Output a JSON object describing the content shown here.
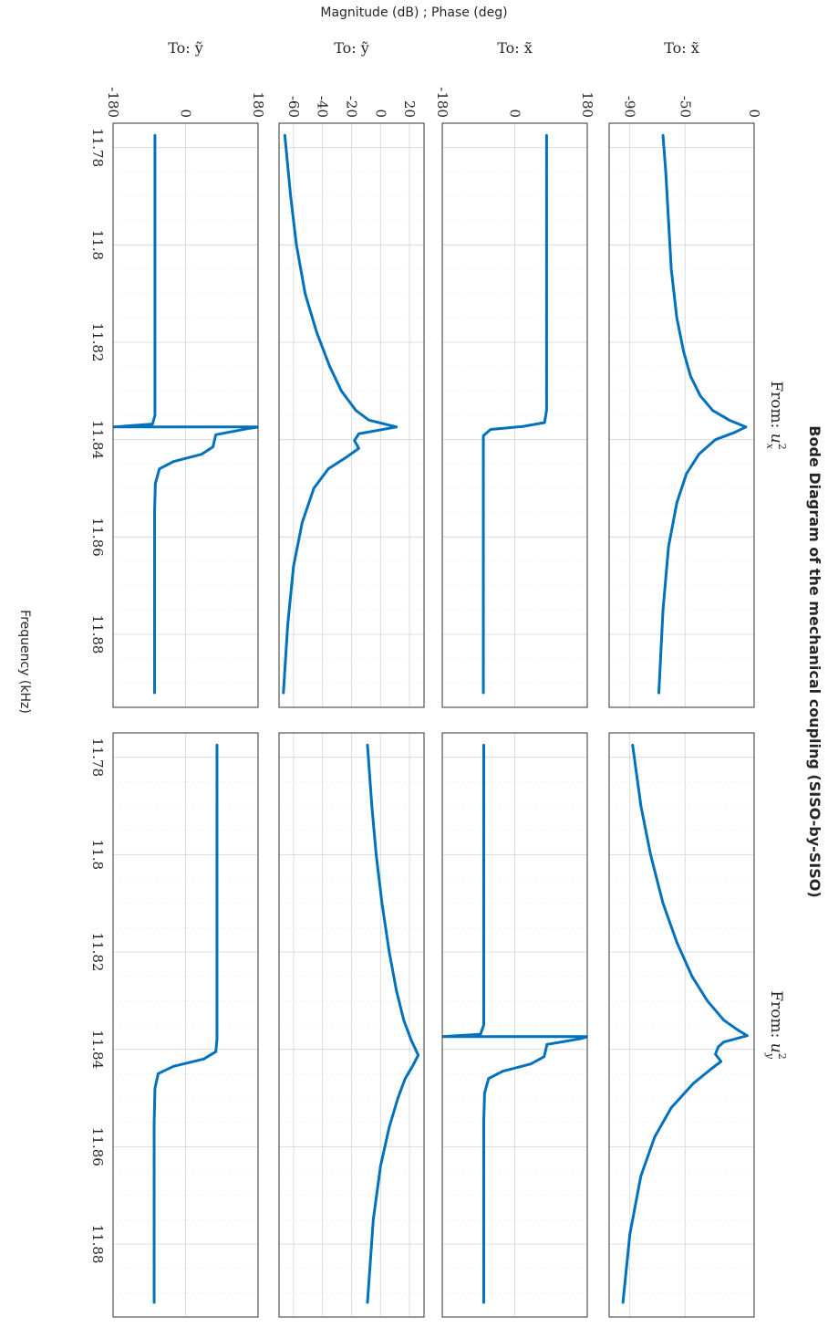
{
  "chart_data": {
    "type": "line",
    "title": "Bode Diagram of the mechanical coupling (SISO-by-SISO)",
    "xlabel": "Frequency  (kHz)",
    "ylabel": "Magnitude (dB) ; Phase (deg)",
    "line_color": "#0072BD",
    "xlim": [
      11.775,
      11.895
    ],
    "x_ticks": [
      11.78,
      11.8,
      11.82,
      11.84,
      11.86,
      11.88
    ],
    "x_tick_labels": [
      "11.78",
      "11.8",
      "11.82",
      "11.84",
      "11.86",
      "11.88"
    ],
    "grid": true,
    "columns": [
      {
        "key": "c1",
        "label_prefix": "From:",
        "label_sym": "u",
        "label_sub": "x",
        "label_sup": "2"
      },
      {
        "key": "c2",
        "label_prefix": "From:",
        "label_sym": "u",
        "label_sub": "y",
        "label_sup": "2"
      }
    ],
    "rows": [
      {
        "key": "r1",
        "kind": "magnitude",
        "label_prefix": "To:",
        "label_sym": "x̃",
        "ylim": [
          -105,
          0
        ],
        "yticks": [
          0,
          -50,
          -90
        ],
        "ytick_labels": [
          "0",
          "-50",
          "-90"
        ]
      },
      {
        "key": "r2",
        "kind": "phase",
        "label_prefix": "To:",
        "label_sym": "x̃",
        "ylim": [
          -180,
          180
        ],
        "yticks": [
          180,
          0,
          -180
        ],
        "ytick_labels": [
          "180",
          "0",
          "-180"
        ]
      },
      {
        "key": "r3",
        "kind": "magnitude",
        "label_prefix": "To:",
        "label_sym": "ỹ",
        "ylim": [
          -70,
          30
        ],
        "yticks": [
          20,
          0,
          -20,
          -40,
          -60
        ],
        "ytick_labels": [
          "20",
          "0",
          "-20",
          "-40",
          "-60"
        ]
      },
      {
        "key": "r4",
        "kind": "phase",
        "label_prefix": "To:",
        "label_sym": "ỹ",
        "ylim": [
          -180,
          180
        ],
        "yticks": [
          180,
          0,
          -180
        ],
        "ytick_labels": [
          "180",
          "0",
          "-180"
        ]
      }
    ],
    "series": [
      {
        "row": 0,
        "col": 0,
        "points": [
          [
            11.7775,
            -66
          ],
          [
            11.785,
            -64
          ],
          [
            11.795,
            -62
          ],
          [
            11.805,
            -60
          ],
          [
            11.815,
            -56
          ],
          [
            11.822,
            -51
          ],
          [
            11.827,
            -46
          ],
          [
            11.831,
            -39
          ],
          [
            11.834,
            -30
          ],
          [
            11.836,
            -18
          ],
          [
            11.8374,
            -6
          ],
          [
            11.8385,
            -14
          ],
          [
            11.84,
            -28
          ],
          [
            11.843,
            -40
          ],
          [
            11.847,
            -49
          ],
          [
            11.853,
            -56
          ],
          [
            11.862,
            -62
          ],
          [
            11.875,
            -66
          ],
          [
            11.892,
            -69
          ]
        ]
      },
      {
        "row": 0,
        "col": 1,
        "points": [
          [
            11.7775,
            -88
          ],
          [
            11.79,
            -82
          ],
          [
            11.8,
            -75
          ],
          [
            11.81,
            -66
          ],
          [
            11.818,
            -56
          ],
          [
            11.825,
            -45
          ],
          [
            11.83,
            -34
          ],
          [
            11.834,
            -22
          ],
          [
            11.836,
            -12
          ],
          [
            11.8372,
            -5
          ],
          [
            11.8385,
            -22
          ],
          [
            11.8395,
            -26
          ],
          [
            11.841,
            -28
          ],
          [
            11.8425,
            -24
          ],
          [
            11.844,
            -31
          ],
          [
            11.847,
            -44
          ],
          [
            11.852,
            -60
          ],
          [
            11.858,
            -72
          ],
          [
            11.866,
            -82
          ],
          [
            11.878,
            -90
          ],
          [
            11.892,
            -95
          ]
        ]
      },
      {
        "row": 1,
        "col": 0,
        "points": [
          [
            11.7775,
            79
          ],
          [
            11.834,
            79
          ],
          [
            11.8365,
            74
          ],
          [
            11.8373,
            20
          ],
          [
            11.8379,
            -60
          ],
          [
            11.8392,
            -78
          ],
          [
            11.892,
            -78
          ]
        ]
      },
      {
        "row": 1,
        "col": 1,
        "points": [
          [
            11.7775,
            -77
          ],
          [
            11.835,
            -77
          ],
          [
            11.8369,
            -85
          ],
          [
            11.8374,
            -180
          ],
          [
            11.8374,
            180
          ],
          [
            11.8378,
            165
          ],
          [
            11.839,
            80
          ],
          [
            11.8415,
            73
          ],
          [
            11.843,
            40
          ],
          [
            11.8445,
            -30
          ],
          [
            11.846,
            -65
          ],
          [
            11.849,
            -75
          ],
          [
            11.855,
            -77
          ],
          [
            11.892,
            -77
          ]
        ]
      },
      {
        "row": 2,
        "col": 0,
        "points": [
          [
            11.7775,
            -66
          ],
          [
            11.79,
            -62
          ],
          [
            11.8,
            -58
          ],
          [
            11.81,
            -52
          ],
          [
            11.818,
            -44
          ],
          [
            11.825,
            -35
          ],
          [
            11.83,
            -27
          ],
          [
            11.834,
            -17
          ],
          [
            11.836,
            -8
          ],
          [
            11.8374,
            11
          ],
          [
            11.8388,
            -15
          ],
          [
            11.8402,
            -18
          ],
          [
            11.8418,
            -15
          ],
          [
            11.8435,
            -23
          ],
          [
            11.846,
            -36
          ],
          [
            11.85,
            -46
          ],
          [
            11.857,
            -54
          ],
          [
            11.866,
            -60
          ],
          [
            11.878,
            -64
          ],
          [
            11.892,
            -67
          ]
        ]
      },
      {
        "row": 2,
        "col": 1,
        "points": [
          [
            11.7775,
            -9
          ],
          [
            11.79,
            -6
          ],
          [
            11.8,
            -3
          ],
          [
            11.81,
            1
          ],
          [
            11.82,
            6
          ],
          [
            11.828,
            11
          ],
          [
            11.834,
            16
          ],
          [
            11.838,
            21
          ],
          [
            11.8412,
            26
          ],
          [
            11.8435,
            22
          ],
          [
            11.846,
            17
          ],
          [
            11.85,
            12
          ],
          [
            11.856,
            6
          ],
          [
            11.864,
            0
          ],
          [
            11.875,
            -5
          ],
          [
            11.892,
            -9
          ]
        ]
      },
      {
        "row": 3,
        "col": 0,
        "points": [
          [
            11.7775,
            -76
          ],
          [
            11.835,
            -76
          ],
          [
            11.8368,
            -82
          ],
          [
            11.8374,
            -180
          ],
          [
            11.8374,
            180
          ],
          [
            11.8378,
            150
          ],
          [
            11.839,
            75
          ],
          [
            11.8415,
            68
          ],
          [
            11.843,
            40
          ],
          [
            11.8445,
            -30
          ],
          [
            11.846,
            -65
          ],
          [
            11.849,
            -75
          ],
          [
            11.855,
            -77
          ],
          [
            11.892,
            -77
          ]
        ]
      },
      {
        "row": 3,
        "col": 1,
        "points": [
          [
            11.7775,
            78
          ],
          [
            11.838,
            78
          ],
          [
            11.8405,
            75
          ],
          [
            11.842,
            45
          ],
          [
            11.8435,
            -30
          ],
          [
            11.845,
            -68
          ],
          [
            11.848,
            -76
          ],
          [
            11.855,
            -78
          ],
          [
            11.892,
            -78
          ]
        ]
      }
    ]
  }
}
